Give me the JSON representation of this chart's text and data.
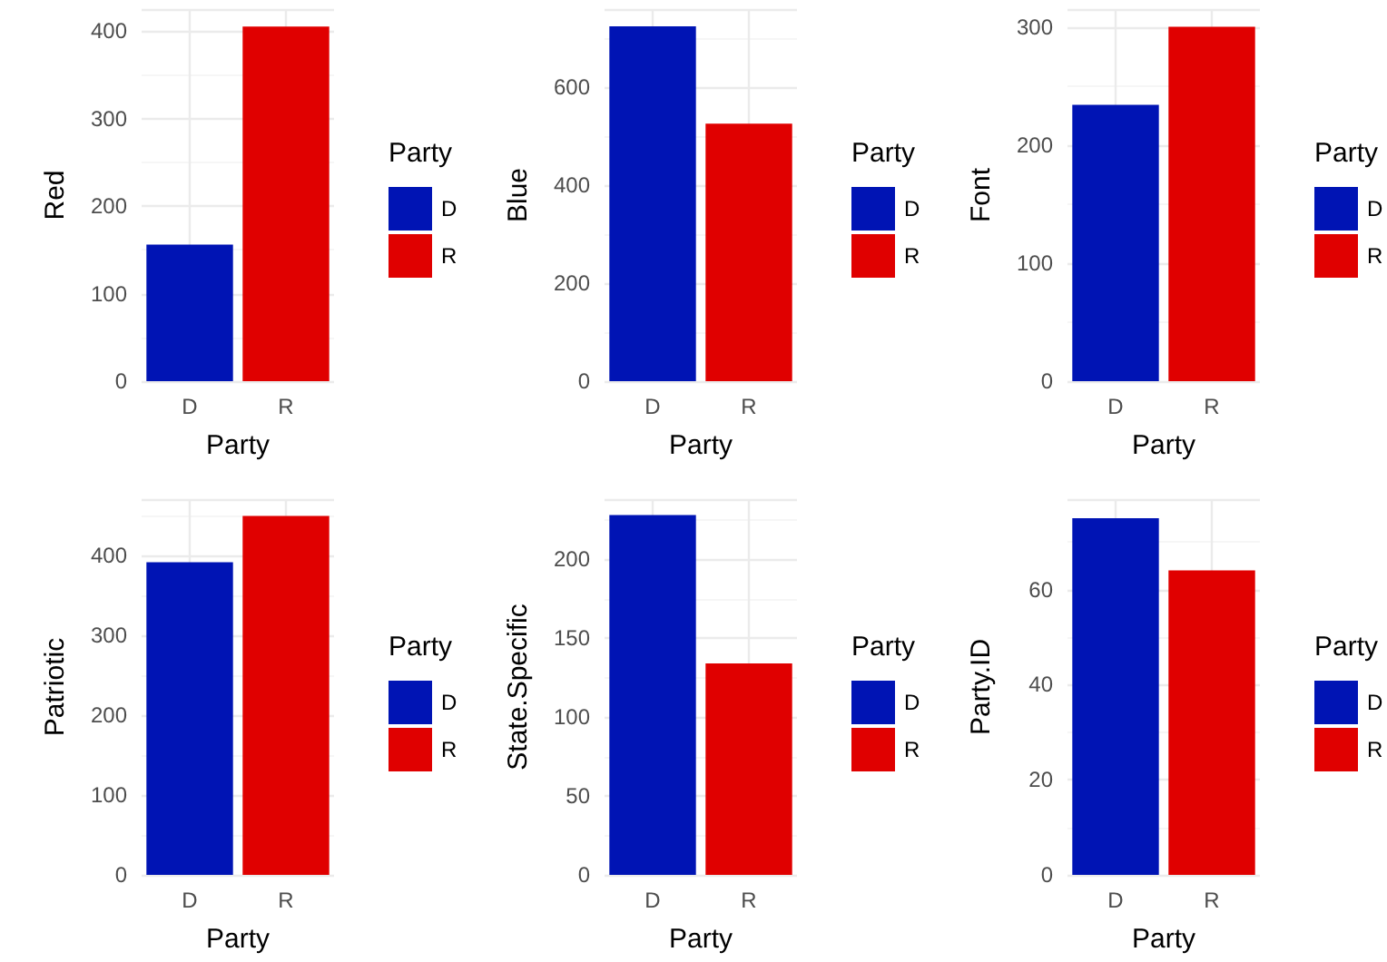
{
  "chart_data": [
    {
      "type": "bar",
      "categories": [
        "D",
        "R"
      ],
      "series": [
        {
          "name": "D",
          "color": "#0014b4",
          "values": [
            156,
            null
          ]
        },
        {
          "name": "R",
          "color": "#e00000",
          "values": [
            null,
            405
          ]
        }
      ],
      "xlabel": "Party",
      "ylabel": "Red",
      "legend_title": "Party",
      "legend": "right",
      "ylim": [
        0,
        425
      ],
      "yticks": [
        0,
        100,
        200,
        300,
        400
      ],
      "grid": true
    },
    {
      "type": "bar",
      "categories": [
        "D",
        "R"
      ],
      "series": [
        {
          "name": "D",
          "color": "#0014b4",
          "values": [
            725,
            null
          ]
        },
        {
          "name": "R",
          "color": "#e00000",
          "values": [
            null,
            526
          ]
        }
      ],
      "xlabel": "Party",
      "ylabel": "Blue",
      "legend_title": "Party",
      "legend": "right",
      "ylim": [
        0,
        760
      ],
      "yticks": [
        0,
        200,
        400,
        600
      ],
      "grid": true
    },
    {
      "type": "bar",
      "categories": [
        "D",
        "R"
      ],
      "series": [
        {
          "name": "D",
          "color": "#0014b4",
          "values": [
            234,
            null
          ]
        },
        {
          "name": "R",
          "color": "#e00000",
          "values": [
            null,
            300
          ]
        }
      ],
      "xlabel": "Party",
      "ylabel": "Font",
      "legend_title": "Party",
      "legend": "right",
      "ylim": [
        0,
        315
      ],
      "yticks": [
        0,
        100,
        200,
        300
      ],
      "grid": true
    },
    {
      "type": "bar",
      "categories": [
        "D",
        "R"
      ],
      "series": [
        {
          "name": "D",
          "color": "#0014b4",
          "values": [
            391,
            null
          ]
        },
        {
          "name": "R",
          "color": "#e00000",
          "values": [
            null,
            449
          ]
        }
      ],
      "xlabel": "Party",
      "ylabel": "Patriotic",
      "legend_title": "Party",
      "legend": "right",
      "ylim": [
        0,
        470
      ],
      "yticks": [
        0,
        100,
        200,
        300,
        400
      ],
      "grid": true
    },
    {
      "type": "bar",
      "categories": [
        "D",
        "R"
      ],
      "series": [
        {
          "name": "D",
          "color": "#0014b4",
          "values": [
            228,
            null
          ]
        },
        {
          "name": "R",
          "color": "#e00000",
          "values": [
            null,
            134
          ]
        }
      ],
      "xlabel": "Party",
      "ylabel": "State.Specific",
      "legend_title": "Party",
      "legend": "right",
      "ylim": [
        0,
        238
      ],
      "yticks": [
        0,
        50,
        100,
        150,
        200
      ],
      "grid": true
    },
    {
      "type": "bar",
      "categories": [
        "D",
        "R"
      ],
      "series": [
        {
          "name": "D",
          "color": "#0014b4",
          "values": [
            75,
            null
          ]
        },
        {
          "name": "R",
          "color": "#e00000",
          "values": [
            null,
            64
          ]
        }
      ],
      "xlabel": "Party",
      "ylabel": "Party.ID",
      "legend_title": "Party",
      "legend": "right",
      "ylim": [
        0,
        79
      ],
      "yticks": [
        0,
        20,
        40,
        60
      ],
      "grid": true
    }
  ]
}
